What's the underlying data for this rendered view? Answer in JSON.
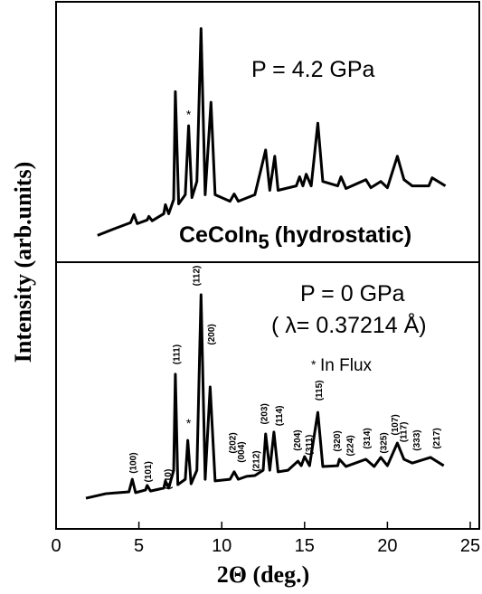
{
  "chart_data": [
    {
      "type": "line",
      "ylabel": "Intensity (arb.units)",
      "annotations": {
        "pressure": "P = 4.2 GPa",
        "star": "*",
        "compound": "CeCoIn",
        "compound_subscript": "5",
        "condition": "(hydrostatic)"
      },
      "star_position": {
        "x": 8.0,
        "y": 55
      },
      "xlim": [
        0,
        25
      ],
      "ylim": [
        0,
        100
      ],
      "series": [
        {
          "color": "#000000",
          "x": [
            2.5,
            3.5,
            4.5,
            4.7,
            4.9,
            5.5,
            5.6,
            5.8,
            6.5,
            6.6,
            6.8,
            7.1,
            7.2,
            7.4,
            7.8,
            8.0,
            8.2,
            8.5,
            8.75,
            9.0,
            9.35,
            9.6,
            10.5,
            10.75,
            11,
            12,
            12.65,
            12.9,
            13.2,
            13.4,
            14.5,
            14.7,
            14.9,
            15.1,
            15.4,
            15.8,
            16.1,
            17,
            17.2,
            17.5,
            18.7,
            19,
            19.6,
            20,
            20.6,
            21,
            21.5,
            22.5,
            22.7,
            23.5
          ],
          "values": [
            10.3,
            12.8,
            15.2,
            18.3,
            14.8,
            16.2,
            17.6,
            15.9,
            18.6,
            22.1,
            18.6,
            24.1,
            65.5,
            22.4,
            25.9,
            52.4,
            24.8,
            31.0,
            89.7,
            25.9,
            61.4,
            25.9,
            23.4,
            26.2,
            23.4,
            25.9,
            43.1,
            27.6,
            40.7,
            27.6,
            29.3,
            32.8,
            29.3,
            33.8,
            29.3,
            53.4,
            31.0,
            29.3,
            32.8,
            28.3,
            31.7,
            28.6,
            31.0,
            28.6,
            40.7,
            31.7,
            29.3,
            29.3,
            32.4,
            29.3
          ]
        }
      ]
    },
    {
      "type": "line",
      "xlabel": "2Θ (deg.)",
      "annotations": {
        "pressure": "P = 0 GPa",
        "wavelength": "( λ= 0.37214 Å)",
        "legend_star": "*",
        "legend_text": "In Flux",
        "star": "*"
      },
      "star_position": {
        "x": 8.0,
        "y": 38
      },
      "xlim": [
        0,
        25
      ],
      "ylim": [
        0,
        100
      ],
      "xticks": [
        0,
        5,
        10,
        15,
        20,
        25
      ],
      "peak_labels": [
        {
          "label": "(100)",
          "x": 4.7,
          "y": 24.7
        },
        {
          "label": "(101)",
          "x": 5.6,
          "y": 21.4
        },
        {
          "label": "(110)",
          "x": 6.8,
          "y": 18.6
        },
        {
          "label": "(111)",
          "x": 7.3,
          "y": 65.4
        },
        {
          "label": "(112)",
          "x": 8.5,
          "y": 94.9
        },
        {
          "label": "(200)",
          "x": 9.4,
          "y": 72.9
        },
        {
          "label": "(202)",
          "x": 10.7,
          "y": 32.2
        },
        {
          "label": "(004)",
          "x": 11.2,
          "y": 28.8
        },
        {
          "label": "(212)",
          "x": 12.1,
          "y": 25.4
        },
        {
          "label": "(203)",
          "x": 12.6,
          "y": 43.1
        },
        {
          "label": "(114)",
          "x": 13.5,
          "y": 42.4
        },
        {
          "label": "(115)",
          "x": 15.9,
          "y": 51.9
        },
        {
          "label": "(204)",
          "x": 14.6,
          "y": 33.2
        },
        {
          "label": "(311)",
          "x": 15.3,
          "y": 31.5
        },
        {
          "label": "(320)",
          "x": 17.0,
          "y": 32.9
        },
        {
          "label": "(224)",
          "x": 17.8,
          "y": 31.2
        },
        {
          "label": "(314)",
          "x": 18.8,
          "y": 33.9
        },
        {
          "label": "(325)",
          "x": 19.8,
          "y": 32.2
        },
        {
          "label": "(107)",
          "x": 20.5,
          "y": 39.0
        },
        {
          "label": "(117)",
          "x": 21.0,
          "y": 36.3
        },
        {
          "label": "(333)",
          "x": 21.8,
          "y": 33.2
        },
        {
          "label": "(217)",
          "x": 23.0,
          "y": 33.9
        }
      ],
      "series": [
        {
          "color": "#000000",
          "x": [
            1.8,
            3,
            4.4,
            4.6,
            4.8,
            5.4,
            5.5,
            5.7,
            6.5,
            6.6,
            6.8,
            7.1,
            7.2,
            7.35,
            7.8,
            7.95,
            8.15,
            8.5,
            8.75,
            9.0,
            9.3,
            9.6,
            10.5,
            10.75,
            11,
            11.5,
            12,
            12.5,
            12.65,
            12.9,
            13.15,
            13.4,
            14,
            14.6,
            14.8,
            15.0,
            15.3,
            15.8,
            16.1,
            17,
            17.1,
            17.5,
            18.7,
            19.2,
            19.6,
            20,
            20.6,
            21,
            21.5,
            22.6,
            23.4
          ],
          "values": [
            11.5,
            13.2,
            13.9,
            18.6,
            13.6,
            14.6,
            16.3,
            14.2,
            15.3,
            18.0,
            15.3,
            22.0,
            58.0,
            16.6,
            18.6,
            33.2,
            16.9,
            22.0,
            87.8,
            18.6,
            53.2,
            18.0,
            18.6,
            21.4,
            18.6,
            19.7,
            20.0,
            22.0,
            35.6,
            22.0,
            36.3,
            21.4,
            22.0,
            25.4,
            23.7,
            27.1,
            23.7,
            43.7,
            23.4,
            23.7,
            26.1,
            23.4,
            26.1,
            23.4,
            26.8,
            23.7,
            32.2,
            26.1,
            24.7,
            26.8,
            23.7
          ]
        }
      ]
    }
  ]
}
